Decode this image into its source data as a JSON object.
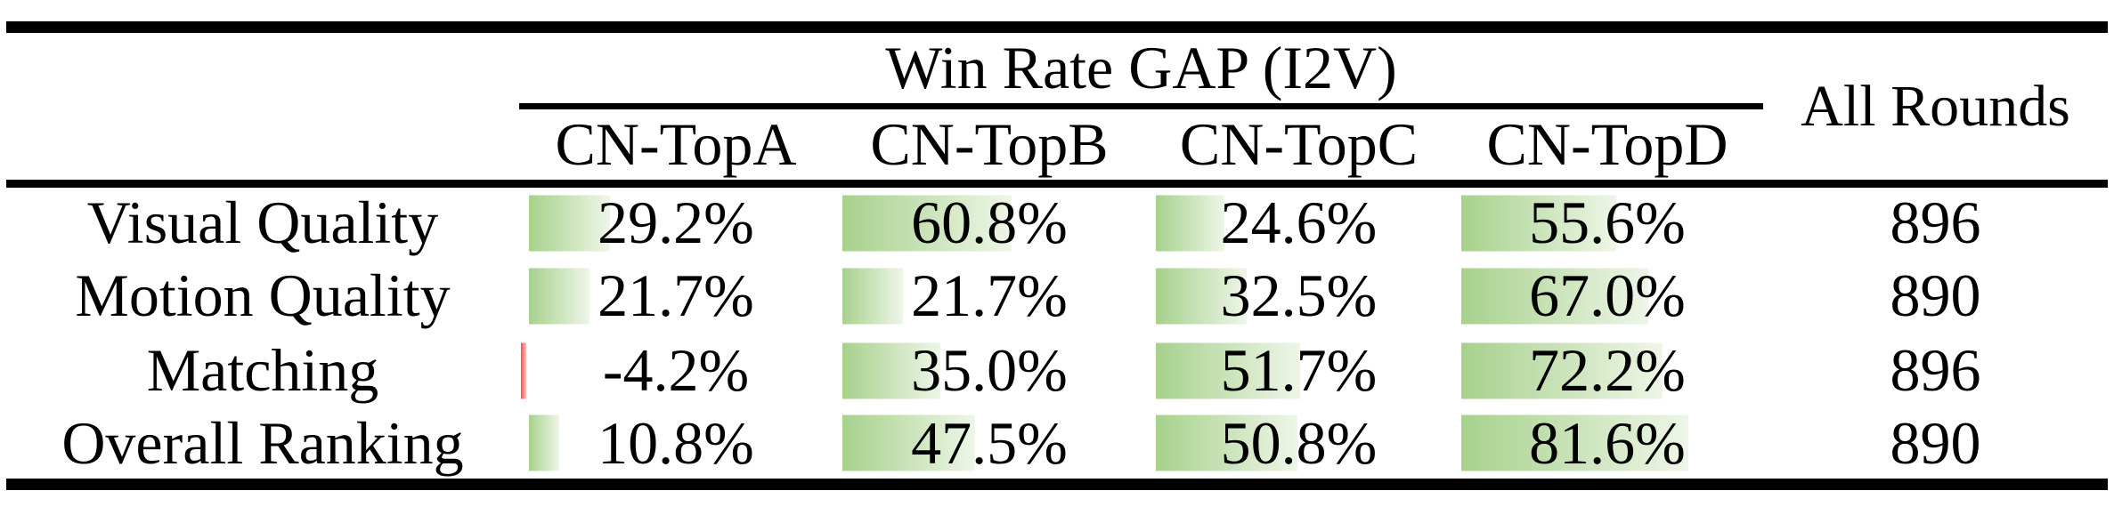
{
  "table": {
    "group_header": "Win Rate GAP (I2V)",
    "all_rounds_header": "All Rounds",
    "columns": [
      "CN-TopA",
      "CN-TopB",
      "CN-TopC",
      "CN-TopD"
    ],
    "rows": [
      {
        "label": "Visual Quality",
        "values": [
          29.2,
          60.8,
          24.6,
          55.6
        ],
        "display": [
          "29.2%",
          "60.8%",
          "24.6%",
          "55.6%"
        ],
        "all_rounds": "896"
      },
      {
        "label": "Motion Quality",
        "values": [
          21.7,
          21.7,
          32.5,
          67.0
        ],
        "display": [
          "21.7%",
          "21.7%",
          "32.5%",
          "67.0%"
        ],
        "all_rounds": "890"
      },
      {
        "label": "Matching",
        "values": [
          -4.2,
          35.0,
          51.7,
          72.2
        ],
        "display": [
          "-4.2%",
          "35.0%",
          "51.7%",
          "72.2%"
        ],
        "all_rounds": "896"
      },
      {
        "label": "Overall Ranking",
        "values": [
          10.8,
          47.5,
          50.8,
          81.6
        ],
        "display": [
          "10.8%",
          "47.5%",
          "50.8%",
          "81.6%"
        ],
        "all_rounds": "890"
      }
    ],
    "colors": {
      "bar_positive": "#a6d18c",
      "bar_positive_fade": "#eef6e7",
      "bar_negative": "#fb4a4a",
      "bar_negative_fade": "#ffc2c2",
      "rule": "#000000",
      "text": "#000000"
    }
  },
  "chart_data": {
    "type": "table",
    "title": "Win Rate GAP (I2V)",
    "categories": [
      "CN-TopA",
      "CN-TopB",
      "CN-TopC",
      "CN-TopD"
    ],
    "series": [
      {
        "name": "Visual Quality",
        "values": [
          29.2,
          60.8,
          24.6,
          55.6
        ],
        "all_rounds": 896
      },
      {
        "name": "Motion Quality",
        "values": [
          21.7,
          21.7,
          32.5,
          67.0
        ],
        "all_rounds": 890
      },
      {
        "name": "Matching",
        "values": [
          -4.2,
          35.0,
          51.7,
          72.2
        ],
        "all_rounds": 896
      },
      {
        "name": "Overall Ranking",
        "values": [
          10.8,
          47.5,
          50.8,
          81.6
        ],
        "all_rounds": 890
      }
    ],
    "unit": "%",
    "notes": "Green left-anchored gradient data bars proportional to value; negative value shown as thin red bar"
  }
}
